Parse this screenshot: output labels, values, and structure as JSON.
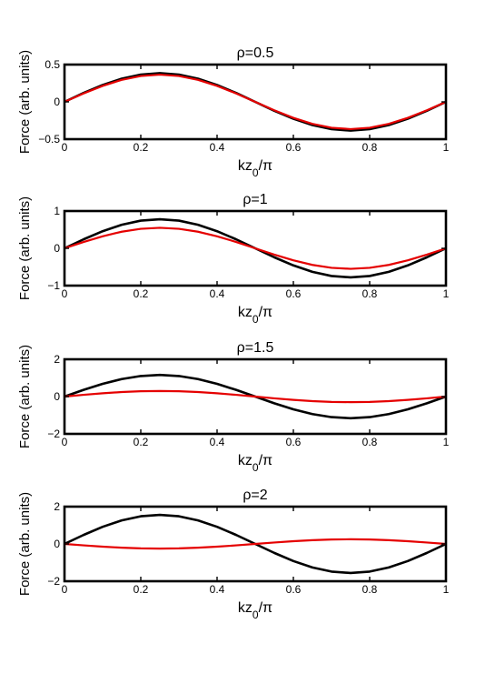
{
  "chart_data": [
    {
      "type": "line",
      "title": "ρ=0.5",
      "xlabel": "kz_0/π",
      "ylabel": "Force (arb. units)",
      "xlim": [
        0,
        1
      ],
      "ylim": [
        -0.5,
        0.5
      ],
      "xticks": [
        0,
        0.2,
        0.4,
        0.6,
        0.8,
        1
      ],
      "xticklabels": [
        "0",
        "0.2",
        "0.4",
        "0.6",
        "0.8",
        "1"
      ],
      "yticks": [
        -0.5,
        0,
        0.5
      ],
      "yticklabels": [
        "−0.5",
        "0",
        "0.5"
      ],
      "grid": false,
      "series": [
        {
          "color": "#000000",
          "x": [
            0,
            0.05,
            0.1,
            0.15,
            0.2,
            0.25,
            0.3,
            0.35,
            0.4,
            0.45,
            0.5,
            0.55,
            0.6,
            0.65,
            0.7,
            0.75,
            0.8,
            0.85,
            0.9,
            0.95,
            1
          ],
          "y": [
            0,
            0.119,
            0.226,
            0.311,
            0.366,
            0.385,
            0.366,
            0.311,
            0.226,
            0.119,
            0,
            -0.119,
            -0.226,
            -0.311,
            -0.366,
            -0.385,
            -0.366,
            -0.311,
            -0.226,
            -0.119,
            0
          ]
        },
        {
          "color": "#e50000",
          "x": [
            0,
            0.05,
            0.1,
            0.15,
            0.2,
            0.25,
            0.3,
            0.35,
            0.4,
            0.45,
            0.5,
            0.55,
            0.6,
            0.65,
            0.7,
            0.75,
            0.8,
            0.85,
            0.9,
            0.95,
            1
          ],
          "y": [
            0,
            0.113,
            0.214,
            0.295,
            0.347,
            0.365,
            0.347,
            0.295,
            0.214,
            0.113,
            0,
            -0.113,
            -0.214,
            -0.295,
            -0.347,
            -0.365,
            -0.347,
            -0.295,
            -0.214,
            -0.113,
            0
          ]
        }
      ]
    },
    {
      "type": "line",
      "title": "ρ=1",
      "xlabel": "kz_0/π",
      "ylabel": "Force (arb. units)",
      "xlim": [
        0,
        1
      ],
      "ylim": [
        -1,
        1
      ],
      "xticks": [
        0,
        0.2,
        0.4,
        0.6,
        0.8,
        1
      ],
      "xticklabels": [
        "0",
        "0.2",
        "0.4",
        "0.6",
        "0.8",
        "1"
      ],
      "yticks": [
        -1,
        0,
        1
      ],
      "yticklabels": [
        "−1",
        "0",
        "1"
      ],
      "grid": false,
      "series": [
        {
          "color": "#000000",
          "x": [
            0,
            0.05,
            0.1,
            0.15,
            0.2,
            0.25,
            0.3,
            0.35,
            0.4,
            0.45,
            0.5,
            0.55,
            0.6,
            0.65,
            0.7,
            0.75,
            0.8,
            0.85,
            0.9,
            0.95,
            1
          ],
          "y": [
            0,
            0.241,
            0.458,
            0.631,
            0.742,
            0.78,
            0.742,
            0.631,
            0.458,
            0.241,
            0,
            -0.241,
            -0.458,
            -0.631,
            -0.742,
            -0.78,
            -0.742,
            -0.631,
            -0.458,
            -0.241,
            0
          ]
        },
        {
          "color": "#e50000",
          "x": [
            0,
            0.05,
            0.1,
            0.15,
            0.2,
            0.25,
            0.3,
            0.35,
            0.4,
            0.45,
            0.5,
            0.55,
            0.6,
            0.65,
            0.7,
            0.75,
            0.8,
            0.85,
            0.9,
            0.95,
            1
          ],
          "y": [
            0,
            0.17,
            0.323,
            0.445,
            0.523,
            0.55,
            0.523,
            0.445,
            0.323,
            0.17,
            0,
            -0.17,
            -0.323,
            -0.445,
            -0.523,
            -0.55,
            -0.523,
            -0.445,
            -0.323,
            -0.17,
            0
          ]
        }
      ]
    },
    {
      "type": "line",
      "title": "ρ=1.5",
      "xlabel": "kz_0/π",
      "ylabel": "Force (arb. units)",
      "xlim": [
        0,
        1
      ],
      "ylim": [
        -2,
        2
      ],
      "xticks": [
        0,
        0.2,
        0.4,
        0.6,
        0.8,
        1
      ],
      "xticklabels": [
        "0",
        "0.2",
        "0.4",
        "0.6",
        "0.8",
        "1"
      ],
      "yticks": [
        -2,
        0,
        2
      ],
      "yticklabels": [
        "−2",
        "0",
        "2"
      ],
      "grid": false,
      "series": [
        {
          "color": "#000000",
          "x": [
            0,
            0.05,
            0.1,
            0.15,
            0.2,
            0.25,
            0.3,
            0.35,
            0.4,
            0.45,
            0.5,
            0.55,
            0.6,
            0.65,
            0.7,
            0.75,
            0.8,
            0.85,
            0.9,
            0.95,
            1
          ],
          "y": [
            0,
            0.358,
            0.682,
            0.938,
            1.103,
            1.16,
            1.103,
            0.938,
            0.682,
            0.358,
            0,
            -0.358,
            -0.682,
            -0.938,
            -1.103,
            -1.16,
            -1.103,
            -0.938,
            -0.682,
            -0.358,
            0
          ]
        },
        {
          "color": "#e50000",
          "x": [
            0,
            0.05,
            0.1,
            0.15,
            0.2,
            0.25,
            0.3,
            0.35,
            0.4,
            0.45,
            0.5,
            0.55,
            0.6,
            0.65,
            0.7,
            0.75,
            0.8,
            0.85,
            0.9,
            0.95,
            1
          ],
          "y": [
            0,
            0.093,
            0.176,
            0.243,
            0.285,
            0.3,
            0.285,
            0.243,
            0.176,
            0.093,
            0,
            -0.093,
            -0.176,
            -0.243,
            -0.285,
            -0.3,
            -0.285,
            -0.243,
            -0.176,
            -0.093,
            0
          ]
        }
      ]
    },
    {
      "type": "line",
      "title": "ρ=2",
      "xlabel": "kz_0/π",
      "ylabel": "Force (arb. units)",
      "xlim": [
        0,
        1
      ],
      "ylim": [
        -2,
        2
      ],
      "xticks": [
        0,
        0.2,
        0.4,
        0.6,
        0.8,
        1
      ],
      "xticklabels": [
        "0",
        "0.2",
        "0.4",
        "0.6",
        "0.8",
        "1"
      ],
      "yticks": [
        -2,
        0,
        2
      ],
      "yticklabels": [
        "−2",
        "0",
        "2"
      ],
      "grid": false,
      "series": [
        {
          "color": "#000000",
          "x": [
            0,
            0.05,
            0.1,
            0.15,
            0.2,
            0.25,
            0.3,
            0.35,
            0.4,
            0.45,
            0.5,
            0.55,
            0.6,
            0.65,
            0.7,
            0.75,
            0.8,
            0.85,
            0.9,
            0.95,
            1
          ],
          "y": [
            0,
            0.482,
            0.917,
            1.262,
            1.483,
            1.56,
            1.483,
            1.262,
            0.917,
            0.482,
            0,
            -0.482,
            -0.917,
            -1.262,
            -1.483,
            -1.56,
            -1.483,
            -1.262,
            -0.917,
            -0.482,
            0
          ]
        },
        {
          "color": "#e50000",
          "x": [
            0,
            0.05,
            0.1,
            0.15,
            0.2,
            0.25,
            0.3,
            0.35,
            0.4,
            0.45,
            0.5,
            0.55,
            0.6,
            0.65,
            0.7,
            0.75,
            0.8,
            0.85,
            0.9,
            0.95,
            1
          ],
          "y": [
            0,
            -0.077,
            -0.147,
            -0.202,
            -0.238,
            -0.25,
            -0.238,
            -0.202,
            -0.147,
            -0.077,
            0,
            0.077,
            0.147,
            0.202,
            0.238,
            0.25,
            0.238,
            0.202,
            0.147,
            0.077,
            0
          ]
        }
      ]
    }
  ]
}
